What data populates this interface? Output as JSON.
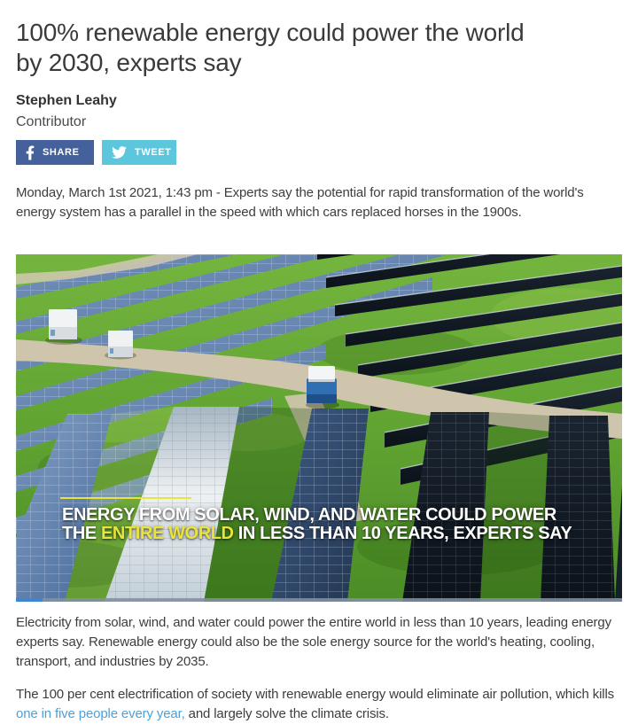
{
  "article": {
    "title": "100% renewable energy could power the world by 2030, experts say",
    "author": "Stephen Leahy",
    "role": "Contributor",
    "share": {
      "facebook_label": "SHARE",
      "twitter_label": "TWEET"
    },
    "intro": "Monday, March 1st 2021, 1:43 pm - Experts say the potential for rapid transformation of the world's energy system has a parallel in the speed with which cars replaced horses in the 1900s.",
    "body": {
      "p1": "Electricity from solar, wind, and water could power the entire world in less than 10 years, leading energy experts say. Renewable energy could also be the sole energy source for the world's heating, cooling, transport, and industries by 2035.",
      "p2_before": "The 100 per cent electrification of society with renewable energy would eliminate air pollution, which kills ",
      "p2_link": "one in five people every year,",
      "p2_after": " and largely solve the climate crisis."
    }
  },
  "hero": {
    "caption_line1": "ENERGY FROM SOLAR, WIND, AND WATER COULD POWER",
    "caption_line2_pre": "THE ",
    "caption_line2_highlight": "ENTIRE WORLD",
    "caption_line2_post": " IN LESS THAN 10 YEARS, EXPERTS SAY",
    "progress_percent": 4.4
  },
  "icons": {
    "facebook": "facebook-f-icon",
    "twitter": "twitter-bird-icon"
  },
  "colors": {
    "facebook_blue": "#44619b",
    "twitter_blue": "#5cc6dd",
    "link_blue": "#4da0da",
    "caption_yellow": "#e9e43b",
    "progress_blue": "#3f86d2"
  }
}
